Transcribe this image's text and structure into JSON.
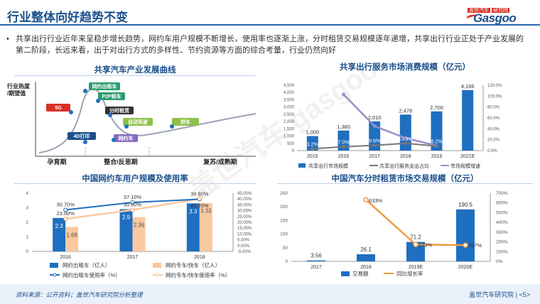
{
  "header": {
    "title": "行业整体向好趋势不变",
    "logo_top": "盖世汽车",
    "logo_badge": "研究院",
    "logo_main": "Gasgoo"
  },
  "summary": "共享出行行业近年来呈稳步增长趋势，网约车用户规模不断增长，使用率也逐渐上涨，分时租赁交易规模逐年递增，共享出行行业正处于产业发展的第二阶段，长远来看，出于对出行方式的多样性、节约资源等方面的综合考量，行业仍然向好",
  "watermark": "盖世汽车 gasgoo",
  "charts": {
    "curve": {
      "title": "共享汽车产业发展曲线",
      "ylabel": "行业热度/期望值",
      "stages": [
        "孕育期",
        "整合/反思期",
        "复苏/成熟期"
      ],
      "labels": [
        {
          "text": "网约出租车",
          "color": "#2a9d6f"
        },
        {
          "text": "P2P租车",
          "color": "#2a9d6f"
        },
        {
          "text": "5G",
          "color": "#d93025"
        },
        {
          "text": "分时租赁",
          "color": "#333333"
        },
        {
          "text": "自动驾驶",
          "color": "#8fc14a"
        },
        {
          "text": "拼车",
          "color": "#8fc14a"
        },
        {
          "text": "网约车",
          "color": "#8a6bbf"
        },
        {
          "text": "4D打印",
          "color": "#1a4f8b"
        }
      ]
    },
    "consumption": {
      "title": "共享出行服务市场消费规模（亿元）",
      "chart_data": {
        "type": "bar",
        "categories": [
          "2015",
          "2016",
          "2017",
          "2018",
          "2019",
          "2021E"
        ],
        "series": [
          {
            "name": "共享出行市场规模",
            "values": [
              1000,
              1380,
              2010,
              2478,
              2700,
              4166
            ]
          },
          {
            "name": "共享出行服务支出占比",
            "values": [
              3.2,
              7.0,
              9.6,
              13.3,
              8.2,
              null
            ]
          },
          {
            "name": "市场规模增速",
            "values": [
              null,
              103,
              45,
              23,
              9,
              null
            ]
          }
        ],
        "value_labels": [
          "1,000",
          "1,380",
          "2,010",
          "2,478",
          "2,700",
          "4,166"
        ],
        "share_labels": [
          "3.2%",
          "7.0%",
          "9.6%",
          "13.3%",
          "8.2%"
        ],
        "ylim": [
          0,
          4500
        ],
        "y2lim": [
          0,
          120
        ],
        "yticks": [
          "0",
          "500",
          "1,000",
          "1,500",
          "2,000",
          "2,500",
          "3,000",
          "3,500",
          "4,000",
          "4,500"
        ],
        "y2ticks": [
          "0.0%",
          "20.0%",
          "40.0%",
          "60.0%",
          "80.0%",
          "100.0%",
          "120.0%"
        ]
      }
    },
    "users": {
      "title": "中国网约车用户规模及使用率",
      "chart_data": {
        "type": "bar",
        "categories": [
          "2016",
          "2017",
          "2018"
        ],
        "series": [
          {
            "name": "网约出租车（亿人）",
            "values": [
              2.3,
              2.9,
              3.3
            ]
          },
          {
            "name": "网约专车/快车（亿人）",
            "values": [
              1.68,
              2.36,
              3.33
            ]
          },
          {
            "name": "网约出租车使用率（%）",
            "values": [
              30.7,
              37.1,
              39.8
            ]
          },
          {
            "name": "网约专车/快车使用率（%）",
            "values": [
              23.0,
              30.6,
              40.2
            ]
          }
        ],
        "bar_labels_a": [
          "2.3",
          "2.9",
          "3.3"
        ],
        "bar_labels_b": [
          "1.68",
          "2.36",
          "3.33"
        ],
        "rate_labels_a": [
          "30.70%",
          "37.10%",
          "39.80%"
        ],
        "rate_labels_b": [
          "23.00%",
          "30.60%",
          "40.20%"
        ],
        "ylim": [
          0,
          4
        ],
        "y2lim": [
          -5,
          45
        ],
        "yticks": [
          "0",
          "1",
          "2",
          "3",
          "4"
        ],
        "y2ticks": [
          "-5.00%",
          "0.00%",
          "5.00%",
          "10.00%",
          "15.00%",
          "20.00%",
          "25.00%",
          "30.00%",
          "35.00%",
          "40.00%",
          "45.00%"
        ]
      }
    },
    "rental": {
      "title": "中国汽车分时租赁市场交易规模（亿元）",
      "chart_data": {
        "type": "bar",
        "categories": [
          "2017",
          "2018",
          "2019E",
          "2020E"
        ],
        "series": [
          {
            "name": "交易额",
            "values": [
              3.56,
              26.1,
              71.2,
              190.5
            ]
          },
          {
            "name": "同比增长率",
            "values": [
              null,
              633,
              173,
              167
            ]
          }
        ],
        "value_labels": [
          "3.56",
          "26.1",
          "71.2",
          "190.5"
        ],
        "rate_labels": [
          "633%",
          "173%",
          "167%"
        ],
        "ylim": [
          0,
          250
        ],
        "y2lim": [
          0,
          700
        ],
        "yticks": [
          "0",
          "50",
          "100",
          "150",
          "200",
          "250"
        ],
        "y2ticks": [
          "0%",
          "100%",
          "200%",
          "300%",
          "400%",
          "500%",
          "600%",
          "700%"
        ]
      }
    }
  },
  "footer": {
    "source": "资料来源：公开资料；盖世汽车研究院分析整理",
    "org": "盖世汽车研究院",
    "page": "<5>"
  },
  "colors": {
    "blue": "#1f6fc0",
    "peach": "#f9c9a1",
    "orange": "#ef9a45",
    "purple": "#9b8cc9",
    "gray": "#777777",
    "title": "#1a4f8b"
  }
}
